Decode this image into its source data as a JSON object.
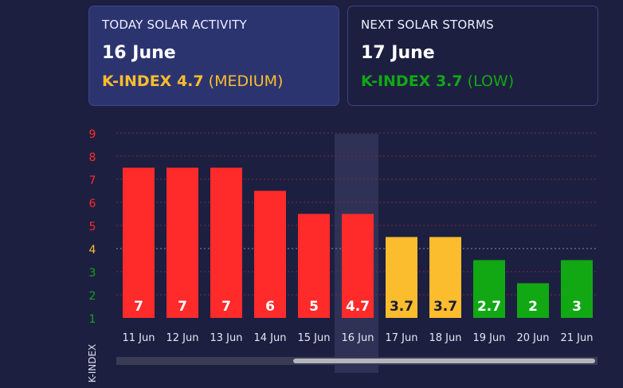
{
  "today": {
    "title": "TODAY SOLAR ACTIVITY",
    "date": "16 June",
    "k_label": "K-INDEX 4.7",
    "level": "(MEDIUM)",
    "color": "#fbbd2e"
  },
  "next": {
    "title": "NEXT SOLAR STORMS",
    "date": "17 June",
    "k_label": "K-INDEX 3.7",
    "level": "(LOW)",
    "color": "#11a814"
  },
  "chart_data": {
    "type": "bar",
    "categories": [
      "11 Jun",
      "12 Jun",
      "13 Jun",
      "14 Jun",
      "15 Jun",
      "16 Jun",
      "17 Jun",
      "18 Jun",
      "19 Jun",
      "20 Jun",
      "21 Jun"
    ],
    "values": [
      7,
      7,
      7,
      6,
      5,
      4.7,
      3.7,
      3.7,
      2.7,
      2,
      3
    ],
    "value_labels": [
      "7",
      "7",
      "7",
      "6",
      "5",
      "4.7",
      "3.7",
      "3.7",
      "2.7",
      "2",
      "3"
    ],
    "bar_heights": [
      7.5,
      7.5,
      7.5,
      6.5,
      5.5,
      5.5,
      4.5,
      4.5,
      3.5,
      2.5,
      3.5
    ],
    "bar_colors": [
      "#ff2b2b",
      "#ff2b2b",
      "#ff2b2b",
      "#ff2b2b",
      "#ff2b2b",
      "#ff2b2b",
      "#fbbd2e",
      "#fbbd2e",
      "#11a814",
      "#11a814",
      "#11a814"
    ],
    "label_colors": [
      "#ffffff",
      "#ffffff",
      "#ffffff",
      "#ffffff",
      "#ffffff",
      "#ffffff",
      "#1b1b2e",
      "#1b1b2e",
      "#ffffff",
      "#ffffff",
      "#ffffff"
    ],
    "highlight_index": 5,
    "ylabel": "K-INDEX",
    "yticks": [
      "1",
      "2",
      "3",
      "4",
      "5",
      "6",
      "7",
      "8",
      "9"
    ],
    "ytick_colors": [
      "#11a814",
      "#11a814",
      "#11a814",
      "#fbbd2e",
      "#ff2b2b",
      "#ff2b2b",
      "#ff2b2b",
      "#ff2b2b",
      "#ff2b2b"
    ],
    "ylim": [
      1,
      9
    ],
    "grid": true
  }
}
